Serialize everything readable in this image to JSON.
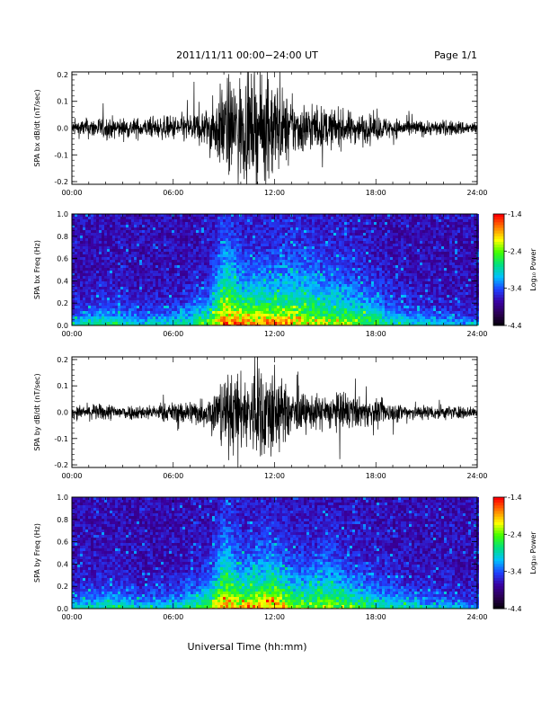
{
  "header": {
    "title": "2011/11/11   00:00−24:00 UT",
    "page": "Page 1/1"
  },
  "xaxis": {
    "label": "Universal Time (hh:mm)",
    "ticks": [
      "00:00",
      "06:00",
      "12:00",
      "18:00",
      "24:00"
    ],
    "range_hours": [
      0,
      24
    ]
  },
  "colors": {
    "trace": "#000000",
    "colormap": [
      "#000000",
      "#2a0050",
      "#3a00a0",
      "#2040ff",
      "#00c0ff",
      "#00e080",
      "#40ff00",
      "#ffff00",
      "#ff8000",
      "#ff0000"
    ]
  },
  "chart_data": [
    {
      "type": "line",
      "ylabel": "SPA bx dB/dt (nT/sec)",
      "ylim": [
        -0.21,
        0.21
      ],
      "yticks": [
        "0.2",
        "0.1",
        "0.0",
        "-0.1",
        "-0.2"
      ],
      "ytick_values": [
        0.2,
        0.1,
        0.0,
        -0.1,
        -0.2
      ],
      "envelope": {
        "hours": [
          0,
          1,
          2,
          3,
          4,
          5,
          6,
          7,
          8,
          8.5,
          9,
          9.5,
          10,
          10.5,
          11,
          11.5,
          12,
          12.5,
          13,
          14,
          15,
          16,
          17,
          18,
          19,
          20,
          21,
          22,
          23,
          24
        ],
        "amplitude": [
          0.03,
          0.04,
          0.045,
          0.04,
          0.04,
          0.04,
          0.05,
          0.06,
          0.08,
          0.12,
          0.19,
          0.2,
          0.21,
          0.2,
          0.2,
          0.21,
          0.21,
          0.15,
          0.11,
          0.1,
          0.08,
          0.07,
          0.06,
          0.05,
          0.04,
          0.035,
          0.03,
          0.03,
          0.03,
          0.025
        ]
      }
    },
    {
      "type": "heatmap",
      "ylabel": "SPA bx Freq (Hz)",
      "ylim": [
        0,
        1.0
      ],
      "yticks": [
        "1.0",
        "0.8",
        "0.6",
        "0.4",
        "0.2",
        "0.0"
      ],
      "ytick_values": [
        1.0,
        0.8,
        0.6,
        0.4,
        0.2,
        0.0
      ],
      "colorbar": {
        "label": "Log₁₀ Power",
        "ticks": [
          "-1.4",
          "-2.4",
          "-3.4",
          "-4.4"
        ],
        "tick_values": [
          -1.4,
          -2.4,
          -3.4,
          -4.4
        ],
        "range": [
          -4.4,
          -1.4
        ]
      },
      "activity": {
        "hours": [
          0,
          2,
          4,
          6,
          8,
          9,
          10,
          11,
          12,
          13,
          14,
          15,
          16,
          17,
          18,
          19,
          20,
          22,
          24
        ],
        "power": [
          0.35,
          0.4,
          0.35,
          0.35,
          0.5,
          0.8,
          0.75,
          0.7,
          0.75,
          0.65,
          0.6,
          0.55,
          0.55,
          0.5,
          0.45,
          0.4,
          0.35,
          0.3,
          0.25
        ],
        "extent_hz": [
          0.1,
          0.15,
          0.1,
          0.12,
          0.2,
          0.45,
          0.3,
          0.3,
          0.3,
          0.35,
          0.35,
          0.3,
          0.3,
          0.25,
          0.2,
          0.15,
          0.12,
          0.1,
          0.08
        ]
      }
    },
    {
      "type": "line",
      "ylabel": "SPA by dB/dt (nT/sec)",
      "ylim": [
        -0.21,
        0.21
      ],
      "yticks": [
        "0.2",
        "0.1",
        "0.0",
        "-0.1",
        "-0.2"
      ],
      "ytick_values": [
        0.2,
        0.1,
        0.0,
        -0.1,
        -0.2
      ],
      "envelope": {
        "hours": [
          0,
          1,
          2,
          3,
          4,
          5,
          6,
          7,
          8,
          8.5,
          9,
          9.5,
          10,
          10.5,
          11,
          11.5,
          12,
          12.5,
          13,
          14,
          15,
          16,
          17,
          18,
          19,
          20,
          21,
          22,
          23,
          24
        ],
        "amplitude": [
          0.025,
          0.03,
          0.035,
          0.03,
          0.03,
          0.03,
          0.04,
          0.05,
          0.06,
          0.1,
          0.14,
          0.16,
          0.15,
          0.15,
          0.2,
          0.2,
          0.19,
          0.12,
          0.09,
          0.07,
          0.07,
          0.08,
          0.06,
          0.05,
          0.04,
          0.035,
          0.03,
          0.03,
          0.025,
          0.02
        ]
      }
    },
    {
      "type": "heatmap",
      "ylabel": "SPA by Freq (Hz)",
      "ylim": [
        0,
        1.0
      ],
      "yticks": [
        "1.0",
        "0.8",
        "0.6",
        "0.4",
        "0.2",
        "0.0"
      ],
      "ytick_values": [
        1.0,
        0.8,
        0.6,
        0.4,
        0.2,
        0.0
      ],
      "colorbar": {
        "label": "Log₁₀ Power",
        "ticks": [
          "-1.4",
          "-2.4",
          "-3.4",
          "-4.4"
        ],
        "tick_values": [
          -1.4,
          -2.4,
          -3.4,
          -4.4
        ],
        "range": [
          -4.4,
          -1.4
        ]
      },
      "activity": {
        "hours": [
          0,
          2,
          4,
          6,
          8,
          9,
          10,
          11,
          12,
          13,
          14,
          15,
          16,
          17,
          18,
          19,
          20,
          22,
          24
        ],
        "power": [
          0.35,
          0.4,
          0.35,
          0.35,
          0.5,
          0.75,
          0.7,
          0.75,
          0.75,
          0.6,
          0.55,
          0.55,
          0.5,
          0.45,
          0.4,
          0.38,
          0.35,
          0.3,
          0.25
        ],
        "extent_hz": [
          0.1,
          0.15,
          0.1,
          0.12,
          0.2,
          0.4,
          0.25,
          0.3,
          0.3,
          0.25,
          0.25,
          0.3,
          0.25,
          0.2,
          0.18,
          0.15,
          0.12,
          0.1,
          0.08
        ]
      }
    }
  ]
}
